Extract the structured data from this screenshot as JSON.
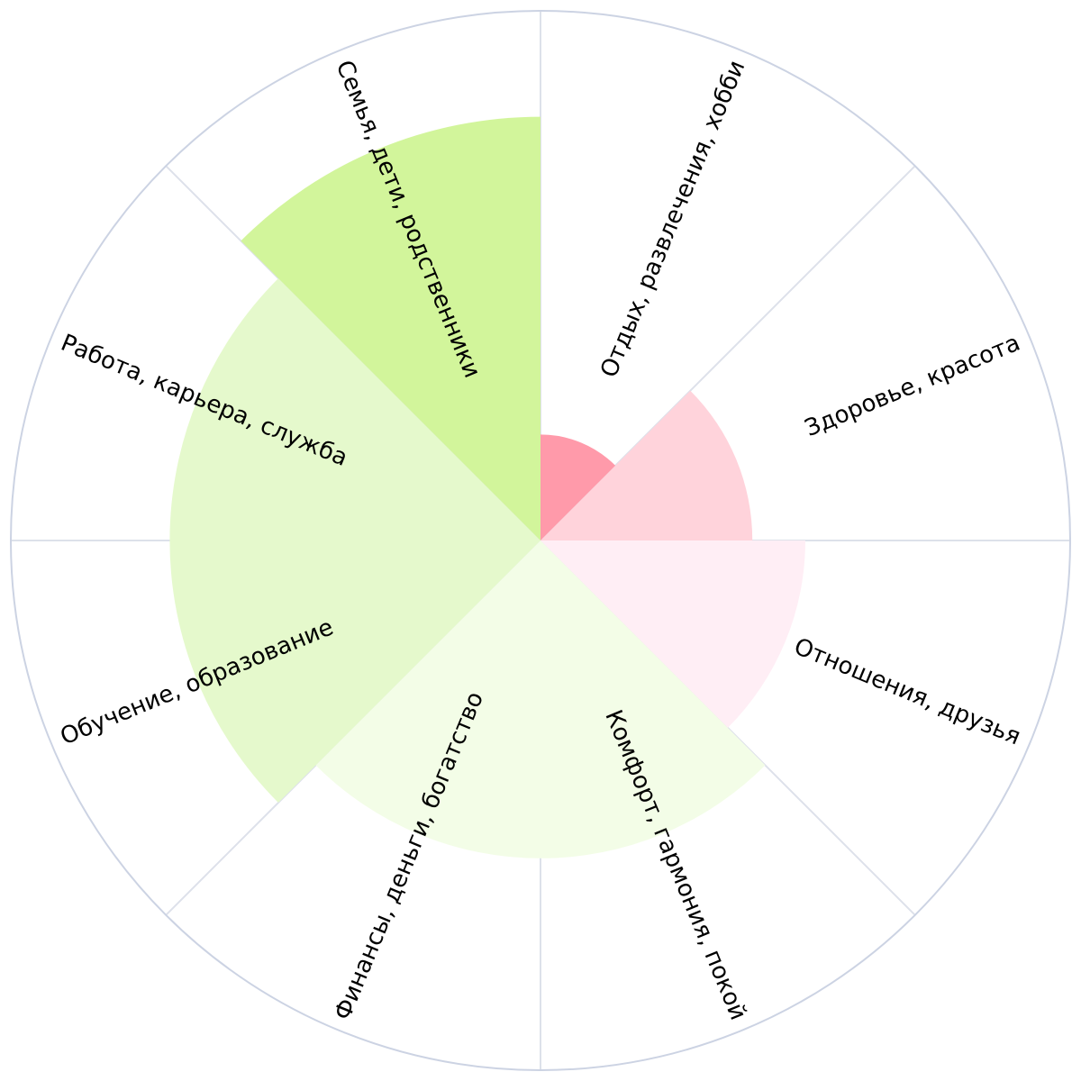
{
  "chart_data": {
    "type": "polar_area",
    "categories": [
      "Отдых, развлечения, хобби",
      "Здоровье, красота",
      "Отношения, друзья",
      "Комфорт, гармония, покой",
      "Финансы, деньги, богатство",
      "Обучение, образование",
      "Работа, карьера, служба",
      "Семья, дети, родственники"
    ],
    "values": [
      2,
      4,
      5,
      6,
      6,
      7,
      7,
      8
    ],
    "colors": [
      "#ff9aaa",
      "#ffd3db",
      "#ffeef5",
      "#f3fde7",
      "#f3fde7",
      "#e5f9cc",
      "#e5f9cc",
      "#d2f59b"
    ],
    "rlim": [
      0,
      10
    ]
  }
}
